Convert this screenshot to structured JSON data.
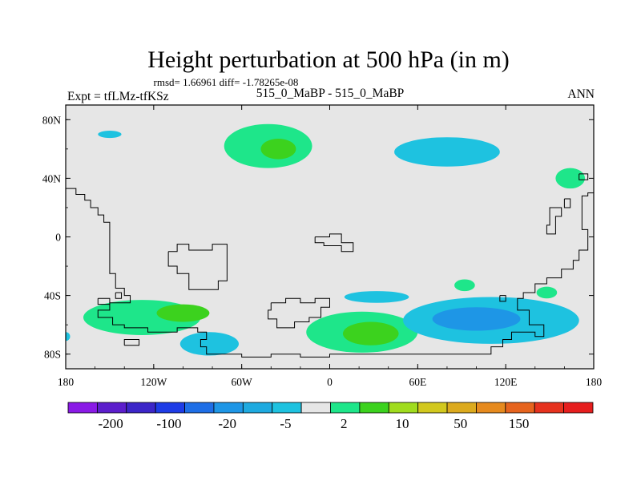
{
  "chart_data": {
    "type": "heatmap",
    "title": "Height perturbation at 500 hPa (in m)",
    "stats_label": "rmsd= 1.66961 diff= -1.78265e-08",
    "left_label": "Expt = tfLMz-tfKSz",
    "center_label": "515_0_MaBP - 515_0_MaBP",
    "right_label": "ANN",
    "xlim": [
      -180,
      180
    ],
    "ylim": [
      -90,
      90
    ],
    "x_ticks": [
      {
        "value": -180,
        "label": "180"
      },
      {
        "value": -120,
        "label": "120W"
      },
      {
        "value": -60,
        "label": "60W"
      },
      {
        "value": 0,
        "label": "0"
      },
      {
        "value": 60,
        "label": "60E"
      },
      {
        "value": 120,
        "label": "120E"
      },
      {
        "value": 180,
        "label": "180"
      }
    ],
    "y_ticks": [
      {
        "value": 80,
        "label": "80N"
      },
      {
        "value": 40,
        "label": "40N"
      },
      {
        "value": 0,
        "label": "0"
      },
      {
        "value": -40,
        "label": "40S"
      },
      {
        "value": -80,
        "label": "80S"
      }
    ],
    "colorbar": {
      "colors": [
        "#8a1ae6",
        "#5c1ecc",
        "#3c26c8",
        "#1e3ce6",
        "#1e6ee6",
        "#1e96e6",
        "#1eaae0",
        "#1ec2e0",
        "#e6e6e6",
        "#1ee68a",
        "#3cd21e",
        "#a0dc1e",
        "#d2c81e",
        "#dcaa1e",
        "#e68a1e",
        "#e6641e",
        "#e6321e",
        "#e61e1e"
      ],
      "labels": [
        "-200",
        "-100",
        "-20",
        "-5",
        "2",
        "10",
        "50",
        "150"
      ]
    },
    "regions": [
      {
        "lon": -42,
        "lat": 62,
        "rx": 30,
        "ry": 15,
        "value": 8,
        "color": "#1ee68a"
      },
      {
        "lon": -35,
        "lat": 60,
        "rx": 12,
        "ry": 7,
        "value": 15,
        "color": "#3cd21e"
      },
      {
        "lon": -150,
        "lat": 70,
        "rx": 8,
        "ry": 2.5,
        "value": -5,
        "color": "#1ec2e0"
      },
      {
        "lon": 80,
        "lat": 58,
        "rx": 36,
        "ry": 10,
        "value": -5,
        "color": "#1ec2e0"
      },
      {
        "lon": 164,
        "lat": 40,
        "rx": 10,
        "ry": 7,
        "value": 8,
        "color": "#1ee68a"
      },
      {
        "lon": 22,
        "lat": -65,
        "rx": 38,
        "ry": 14,
        "value": 8,
        "color": "#1ee68a"
      },
      {
        "lon": 28,
        "lat": -66,
        "rx": 19,
        "ry": 8,
        "value": 15,
        "color": "#3cd21e"
      },
      {
        "lon": -128,
        "lat": -55,
        "rx": 40,
        "ry": 12,
        "value": 8,
        "color": "#1ee68a"
      },
      {
        "lon": -100,
        "lat": -52,
        "rx": 18,
        "ry": 6,
        "value": 15,
        "color": "#3cd21e"
      },
      {
        "lon": -82,
        "lat": -73,
        "rx": 20,
        "ry": 8,
        "value": -5,
        "color": "#1ec2e0"
      },
      {
        "lon": 32,
        "lat": -41,
        "rx": 22,
        "ry": 4,
        "value": -5,
        "color": "#1ec2e0"
      },
      {
        "lon": 92,
        "lat": -33,
        "rx": 7,
        "ry": 4,
        "value": 8,
        "color": "#1ee68a"
      },
      {
        "lon": 148,
        "lat": -38,
        "rx": 7,
        "ry": 4,
        "value": 8,
        "color": "#1ee68a"
      },
      {
        "lon": 110,
        "lat": -57,
        "rx": 60,
        "ry": 16,
        "value": -5,
        "color": "#1ec2e0"
      },
      {
        "lon": 100,
        "lat": -56,
        "rx": 30,
        "ry": 8,
        "value": -10,
        "color": "#1e96e6"
      },
      {
        "lon": -180,
        "lat": -68,
        "rx": 3,
        "ry": 3,
        "value": -5,
        "color": "#1ec2e0"
      }
    ],
    "coastlines": [
      [
        [
          -180,
          33
        ],
        [
          -173,
          33
        ],
        [
          -173,
          29
        ],
        [
          -167,
          29
        ],
        [
          -167,
          25
        ],
        [
          -163,
          25
        ],
        [
          -163,
          20
        ],
        [
          -158,
          20
        ],
        [
          -158,
          15
        ],
        [
          -154,
          15
        ],
        [
          -154,
          10
        ],
        [
          -150,
          10
        ],
        [
          -150,
          -25
        ],
        [
          -146,
          -25
        ],
        [
          -146,
          -35
        ],
        [
          -140,
          -35
        ],
        [
          -140,
          -40
        ],
        [
          -136,
          -40
        ],
        [
          -136,
          -45
        ],
        [
          -150,
          -45
        ],
        [
          -150,
          -50
        ],
        [
          -158,
          -50
        ],
        [
          -158,
          -55
        ],
        [
          -148,
          -55
        ],
        [
          -148,
          -60
        ],
        [
          -140,
          -60
        ],
        [
          -140,
          -62
        ],
        [
          -124,
          -62
        ],
        [
          -124,
          -65
        ],
        [
          -104,
          -65
        ],
        [
          -104,
          -62
        ],
        [
          -90,
          -62
        ],
        [
          -90,
          -65
        ],
        [
          -84,
          -65
        ],
        [
          -84,
          -70
        ],
        [
          -88,
          -70
        ],
        [
          -88,
          -75
        ],
        [
          -84,
          -75
        ],
        [
          -84,
          -80
        ],
        [
          -60,
          -80
        ],
        [
          -60,
          -82
        ],
        [
          -40,
          -82
        ],
        [
          -40,
          -80
        ],
        [
          -20,
          -80
        ],
        [
          -20,
          -82
        ],
        [
          0,
          -82
        ],
        [
          0,
          -80
        ],
        [
          110,
          -80
        ],
        [
          110,
          -75
        ],
        [
          118,
          -75
        ],
        [
          118,
          -70
        ],
        [
          124,
          -70
        ],
        [
          124,
          -65
        ],
        [
          140,
          -65
        ],
        [
          140,
          -68
        ],
        [
          146,
          -68
        ],
        [
          146,
          -60
        ],
        [
          136,
          -60
        ],
        [
          136,
          -50
        ],
        [
          128,
          -50
        ],
        [
          128,
          -42
        ],
        [
          132,
          -42
        ],
        [
          132,
          -38
        ],
        [
          140,
          -38
        ],
        [
          140,
          -32
        ],
        [
          148,
          -32
        ],
        [
          148,
          -28
        ],
        [
          158,
          -28
        ],
        [
          158,
          -22
        ],
        [
          166,
          -22
        ],
        [
          166,
          -16
        ],
        [
          170,
          -16
        ],
        [
          170,
          -9
        ],
        [
          176,
          -9
        ],
        [
          176,
          5
        ],
        [
          172,
          5
        ],
        [
          172,
          28
        ],
        [
          176,
          28
        ],
        [
          176,
          30
        ],
        [
          180,
          30
        ]
      ],
      [
        [
          -146,
          -38
        ],
        [
          -142,
          -38
        ],
        [
          -142,
          -42
        ],
        [
          -146,
          -42
        ],
        [
          -146,
          -38
        ]
      ],
      [
        [
          -158,
          -42
        ],
        [
          -150,
          -42
        ],
        [
          -150,
          -46
        ],
        [
          -158,
          -46
        ],
        [
          -158,
          -42
        ]
      ],
      [
        [
          -110,
          -10
        ],
        [
          -104,
          -10
        ],
        [
          -104,
          -5
        ],
        [
          -96,
          -5
        ],
        [
          -96,
          -9
        ],
        [
          -80,
          -9
        ],
        [
          -80,
          -5
        ],
        [
          -70,
          -5
        ],
        [
          -70,
          -30
        ],
        [
          -76,
          -30
        ],
        [
          -76,
          -36
        ],
        [
          -96,
          -36
        ],
        [
          -96,
          -25
        ],
        [
          -104,
          -25
        ],
        [
          -104,
          -20
        ],
        [
          -110,
          -20
        ],
        [
          -110,
          -10
        ]
      ],
      [
        [
          -40,
          -45
        ],
        [
          -30,
          -45
        ],
        [
          -30,
          -42
        ],
        [
          -20,
          -42
        ],
        [
          -20,
          -45
        ],
        [
          -10,
          -45
        ],
        [
          -10,
          -42
        ],
        [
          0,
          -42
        ],
        [
          0,
          -48
        ],
        [
          -6,
          -48
        ],
        [
          -6,
          -55
        ],
        [
          -14,
          -55
        ],
        [
          -14,
          -58
        ],
        [
          -24,
          -58
        ],
        [
          -24,
          -62
        ],
        [
          -36,
          -62
        ],
        [
          -36,
          -56
        ],
        [
          -42,
          -56
        ],
        [
          -42,
          -50
        ],
        [
          -40,
          -50
        ],
        [
          -40,
          -45
        ]
      ],
      [
        [
          -10,
          0
        ],
        [
          0,
          0
        ],
        [
          0,
          2
        ],
        [
          8,
          2
        ],
        [
          8,
          -4
        ],
        [
          16,
          -4
        ],
        [
          16,
          -10
        ],
        [
          8,
          -10
        ],
        [
          8,
          -6
        ],
        [
          -4,
          -6
        ],
        [
          -4,
          -4
        ],
        [
          -10,
          -4
        ],
        [
          -10,
          0
        ]
      ],
      [
        [
          170,
          43
        ],
        [
          176,
          43
        ],
        [
          176,
          39
        ],
        [
          170,
          39
        ],
        [
          170,
          43
        ]
      ],
      [
        [
          152,
          20
        ],
        [
          158,
          20
        ],
        [
          158,
          14
        ],
        [
          154,
          14
        ],
        [
          154,
          2
        ],
        [
          148,
          2
        ],
        [
          148,
          8
        ],
        [
          150,
          8
        ],
        [
          150,
          20
        ],
        [
          152,
          20
        ]
      ],
      [
        [
          160,
          26
        ],
        [
          164,
          26
        ],
        [
          164,
          20
        ],
        [
          160,
          20
        ],
        [
          160,
          26
        ]
      ],
      [
        [
          116,
          -40
        ],
        [
          120,
          -40
        ],
        [
          120,
          -44
        ],
        [
          116,
          -44
        ],
        [
          116,
          -40
        ]
      ],
      [
        [
          -140,
          -74
        ],
        [
          -130,
          -74
        ],
        [
          -130,
          -70
        ],
        [
          -140,
          -70
        ],
        [
          -140,
          -74
        ]
      ]
    ]
  }
}
